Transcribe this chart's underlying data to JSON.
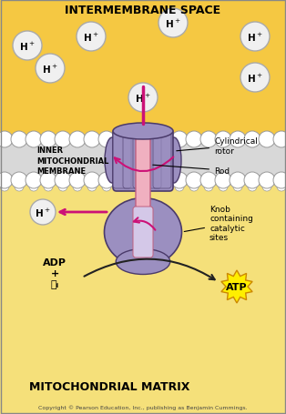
{
  "bg_top": "#f5c842",
  "bg_membrane": "#e8e8e8",
  "bg_bottom": "#f5e07a",
  "membrane_color": "#cccccc",
  "protein_fill": "#9b8fc0",
  "protein_edge": "#4a3a6a",
  "rod_fill": "#f0b0c0",
  "rod_edge": "#c06080",
  "title_top": "INTERMEMBRANE SPACE",
  "title_bottom": "MITOCHONDRIAL MATRIX",
  "label_inner": "INNER\nMITOCHONDRIAL\nMEMBRANE",
  "label_cyl": "Cylindrical\nrotor",
  "label_rod": "Rod",
  "label_knob": "Knob\ncontaining\ncatalytic\nsites",
  "label_adp": "ADP\n+\nⓅᵢ",
  "label_atp": "ATP",
  "copyright": "Copyright © Pearson Education, Inc., publishing as Benjamin Cummings.",
  "hplus_color": "#f0f0f0",
  "hplus_border": "#aaaaaa",
  "arrow_color": "#cc1177",
  "dark_arrow": "#222222"
}
